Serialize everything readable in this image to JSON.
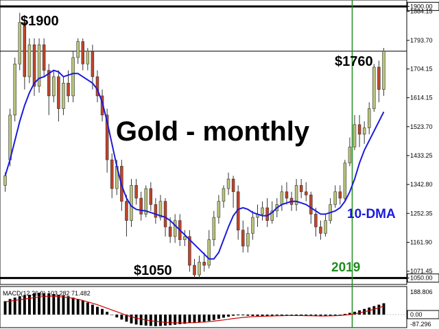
{
  "chart_data": [
    {
      "type": "candlestick",
      "title": "Gold - monthly",
      "ylim": [
        1030,
        1920
      ],
      "y_ticks": [
        "1900.00",
        "1884.15",
        "1793.70",
        "1704.15",
        "1614.15",
        "1523.70",
        "1433.25",
        "1342.80",
        "1252.35",
        "1161.90",
        "1071.45",
        "1050.00"
      ],
      "highlighted_levels": [
        {
          "label": "1900.00",
          "value": 1900
        },
        {
          "label": "1760.00",
          "value": 1760
        },
        {
          "label": "1050.00",
          "value": 1050
        }
      ],
      "series": [
        {
          "name": "10-DMA",
          "color": "#1a1adb",
          "values": [
            1370,
            1420,
            1480,
            1540,
            1590,
            1630,
            1660,
            1675,
            1680,
            1690,
            1700,
            1695,
            1680,
            1685,
            1690,
            1690,
            1680,
            1670,
            1660,
            1640,
            1600,
            1540,
            1470,
            1400,
            1340,
            1300,
            1275,
            1265,
            1262,
            1260,
            1255,
            1250,
            1245,
            1240,
            1230,
            1215,
            1200,
            1185,
            1170,
            1155,
            1140,
            1125,
            1110,
            1110,
            1130,
            1170,
            1210,
            1245,
            1265,
            1270,
            1265,
            1255,
            1250,
            1245,
            1245,
            1255,
            1270,
            1280,
            1285,
            1290,
            1290,
            1285,
            1280,
            1270,
            1260,
            1250,
            1250,
            1255,
            1260,
            1270,
            1290,
            1320,
            1360,
            1410,
            1450,
            1480,
            1510,
            1540,
            1570
          ]
        }
      ],
      "candles": [
        [
          1340,
          1370,
          1320,
          1380
        ],
        [
          1420,
          1560,
          1400,
          1580
        ],
        [
          1560,
          1720,
          1540,
          1740
        ],
        [
          1720,
          1850,
          1700,
          1880
        ],
        [
          1850,
          1680,
          1640,
          1870
        ],
        [
          1680,
          1780,
          1660,
          1800
        ],
        [
          1780,
          1650,
          1620,
          1800
        ],
        [
          1650,
          1780,
          1630,
          1800
        ],
        [
          1780,
          1700,
          1680,
          1800
        ],
        [
          1700,
          1620,
          1560,
          1720
        ],
        [
          1620,
          1680,
          1600,
          1700
        ],
        [
          1680,
          1580,
          1540,
          1700
        ],
        [
          1580,
          1660,
          1560,
          1680
        ],
        [
          1660,
          1620,
          1600,
          1700
        ],
        [
          1620,
          1740,
          1600,
          1760
        ],
        [
          1740,
          1790,
          1720,
          1800
        ],
        [
          1790,
          1720,
          1700,
          1800
        ],
        [
          1720,
          1760,
          1700,
          1770
        ],
        [
          1760,
          1680,
          1640,
          1780
        ],
        [
          1680,
          1620,
          1600,
          1700
        ],
        [
          1620,
          1560,
          1540,
          1640
        ],
        [
          1560,
          1420,
          1380,
          1580
        ],
        [
          1420,
          1330,
          1300,
          1440
        ],
        [
          1330,
          1400,
          1310,
          1420
        ],
        [
          1400,
          1290,
          1260,
          1420
        ],
        [
          1290,
          1230,
          1180,
          1310
        ],
        [
          1230,
          1340,
          1210,
          1360
        ],
        [
          1340,
          1300,
          1280,
          1360
        ],
        [
          1300,
          1250,
          1230,
          1320
        ],
        [
          1250,
          1330,
          1240,
          1340
        ],
        [
          1330,
          1280,
          1260,
          1350
        ],
        [
          1280,
          1240,
          1220,
          1300
        ],
        [
          1240,
          1290,
          1230,
          1310
        ],
        [
          1290,
          1210,
          1180,
          1300
        ],
        [
          1210,
          1180,
          1160,
          1240
        ],
        [
          1180,
          1230,
          1160,
          1250
        ],
        [
          1230,
          1170,
          1150,
          1250
        ],
        [
          1170,
          1180,
          1150,
          1200
        ],
        [
          1180,
          1090,
          1070,
          1200
        ],
        [
          1090,
          1060,
          1050,
          1110
        ],
        [
          1060,
          1100,
          1050,
          1120
        ],
        [
          1100,
          1090,
          1070,
          1130
        ],
        [
          1090,
          1170,
          1080,
          1200
        ],
        [
          1170,
          1240,
          1150,
          1260
        ],
        [
          1240,
          1290,
          1220,
          1310
        ],
        [
          1290,
          1330,
          1270,
          1340
        ],
        [
          1330,
          1360,
          1310,
          1380
        ],
        [
          1360,
          1320,
          1270,
          1370
        ],
        [
          1320,
          1200,
          1170,
          1340
        ],
        [
          1200,
          1150,
          1130,
          1230
        ],
        [
          1150,
          1190,
          1130,
          1210
        ],
        [
          1190,
          1240,
          1170,
          1260
        ],
        [
          1240,
          1250,
          1210,
          1280
        ],
        [
          1250,
          1270,
          1230,
          1290
        ],
        [
          1270,
          1230,
          1210,
          1300
        ],
        [
          1230,
          1260,
          1220,
          1290
        ],
        [
          1260,
          1280,
          1240,
          1300
        ],
        [
          1280,
          1320,
          1260,
          1340
        ],
        [
          1320,
          1300,
          1280,
          1350
        ],
        [
          1300,
          1280,
          1260,
          1320
        ],
        [
          1280,
          1340,
          1260,
          1360
        ],
        [
          1340,
          1320,
          1300,
          1360
        ],
        [
          1320,
          1310,
          1290,
          1350
        ],
        [
          1310,
          1250,
          1220,
          1320
        ],
        [
          1250,
          1210,
          1180,
          1270
        ],
        [
          1210,
          1190,
          1170,
          1230
        ],
        [
          1190,
          1230,
          1180,
          1250
        ],
        [
          1230,
          1280,
          1220,
          1300
        ],
        [
          1280,
          1320,
          1270,
          1340
        ],
        [
          1320,
          1300,
          1280,
          1340
        ],
        [
          1300,
          1410,
          1290,
          1420
        ],
        [
          1410,
          1460,
          1400,
          1490
        ],
        [
          1460,
          1530,
          1450,
          1560
        ],
        [
          1530,
          1500,
          1460,
          1560
        ],
        [
          1500,
          1520,
          1470,
          1540
        ],
        [
          1520,
          1580,
          1500,
          1600
        ],
        [
          1580,
          1710,
          1570,
          1720
        ],
        [
          1710,
          1640,
          1600,
          1730
        ],
        [
          1640,
          1760,
          1620,
          1770
        ]
      ],
      "annotations": [
        {
          "text": "$1900"
        },
        {
          "text": "$1760"
        },
        {
          "text": "$1050"
        },
        {
          "text": "10-DMA"
        },
        {
          "text": "2019"
        }
      ],
      "vertical_marker": {
        "label": "2019",
        "index": 70,
        "color": "#1e8c1e"
      }
    },
    {
      "type": "bar",
      "title": "MACD(12,26,9) 103.282 71.482",
      "ylim": [
        -87.296,
        188.806
      ],
      "y_ticks": [
        "188.806",
        "0.00",
        "-87.296"
      ],
      "histogram": [
        95,
        110,
        120,
        130,
        135,
        140,
        150,
        155,
        150,
        150,
        145,
        140,
        135,
        130,
        120,
        110,
        100,
        85,
        70,
        55,
        40,
        20,
        0,
        -20,
        -35,
        -50,
        -62,
        -70,
        -75,
        -78,
        -80,
        -82,
        -80,
        -78,
        -75,
        -72,
        -68,
        -65,
        -60,
        -58,
        -55,
        -50,
        -45,
        -38,
        -30,
        -22,
        -15,
        -8,
        -5,
        -5,
        -8,
        -10,
        -12,
        -12,
        -10,
        -8,
        -6,
        -5,
        -4,
        -4,
        -5,
        -6,
        -8,
        -10,
        -12,
        -12,
        -10,
        -8,
        -5,
        -2,
        5,
        12,
        20,
        30,
        40,
        50,
        60,
        70,
        80
      ],
      "signal": [
        90,
        95,
        100,
        105,
        110,
        115,
        120,
        125,
        128,
        130,
        130,
        128,
        125,
        120,
        115,
        108,
        100,
        90,
        80,
        70,
        58,
        45,
        32,
        20,
        8,
        -5,
        -15,
        -25,
        -32,
        -38,
        -44,
        -48,
        -52,
        -55,
        -57,
        -58,
        -59,
        -59,
        -58,
        -57,
        -55,
        -53,
        -50,
        -46,
        -42,
        -38,
        -33,
        -28,
        -24,
        -20,
        -17,
        -15,
        -13,
        -12,
        -11,
        -10,
        -9,
        -8,
        -7,
        -7,
        -7,
        -7,
        -8,
        -8,
        -9,
        -10,
        -10,
        -9,
        -8,
        -6,
        -3,
        0,
        5,
        12,
        20,
        28,
        38,
        48,
        60
      ],
      "signal_color": "#cc0000"
    }
  ]
}
